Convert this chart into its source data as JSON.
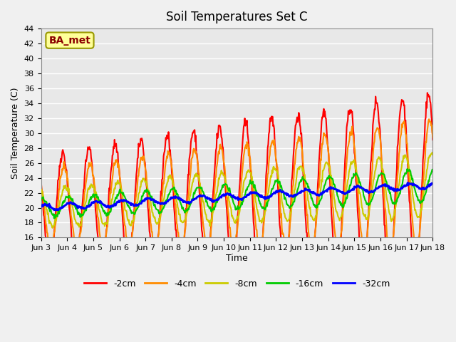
{
  "title": "Soil Temperatures Set C",
  "xlabel": "Time",
  "ylabel": "Soil Temperature (C)",
  "ylim": [
    16,
    44
  ],
  "yticks": [
    16,
    18,
    20,
    22,
    24,
    26,
    28,
    30,
    32,
    34,
    36,
    38,
    40,
    42,
    44
  ],
  "line_colors": {
    "-2cm": "#FF0000",
    "-4cm": "#FF8C00",
    "-8cm": "#CCCC00",
    "-16cm": "#00CC00",
    "-32cm": "#0000FF"
  },
  "line_widths": {
    "-2cm": 1.5,
    "-4cm": 1.5,
    "-8cm": 1.5,
    "-16cm": 1.5,
    "-32cm": 2.0
  },
  "annotation_text": "BA_met",
  "annotation_color": "#8B0000",
  "annotation_bg": "#FFFF99",
  "background_color": "#E8E8E8",
  "grid_color": "#FFFFFF",
  "xtick_labels": [
    "Jun 3",
    "Jun 4",
    "Jun 5",
    "Jun 6",
    "Jun 7",
    "Jun 8",
    "Jun 9",
    "Jun 10",
    "Jun 11",
    "Jun 12",
    "Jun 13",
    "Jun 14",
    "Jun 15",
    "Jun 16",
    "Jun 17",
    "Jun 18"
  ],
  "n_points_per_day": 48,
  "n_days": 15
}
